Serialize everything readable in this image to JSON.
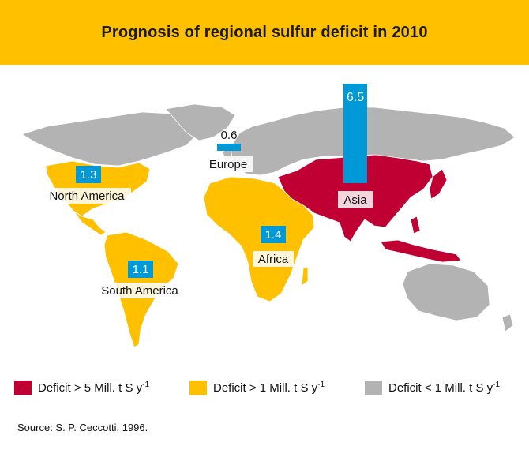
{
  "title": "Prognosis of regional sulfur deficit in 2010",
  "colors": {
    "header": "#FFC000",
    "high": "#C00033",
    "mid": "#FFC000",
    "low": "#B3B3B3",
    "bar": "#0099D8"
  },
  "regions": [
    {
      "name": "North America",
      "deficit": "1.3",
      "category": "mid"
    },
    {
      "name": "South America",
      "deficit": "1.1",
      "category": "mid"
    },
    {
      "name": "Europe",
      "deficit": "0.6",
      "category": "low"
    },
    {
      "name": "Africa",
      "deficit": "1.4",
      "category": "mid"
    },
    {
      "name": "Asia",
      "deficit": "6.5",
      "category": "high"
    }
  ],
  "legend": {
    "high": {
      "label": "Deficit > 5 Mill. t S y",
      "sup": "-1"
    },
    "mid": {
      "label": "Deficit > 1 Mill. t S y",
      "sup": "-1"
    },
    "low": {
      "label": "Deficit < 1 Mill. t S y",
      "sup": "-1"
    }
  },
  "source": "Source: S. P. Ceccotti, 1996."
}
